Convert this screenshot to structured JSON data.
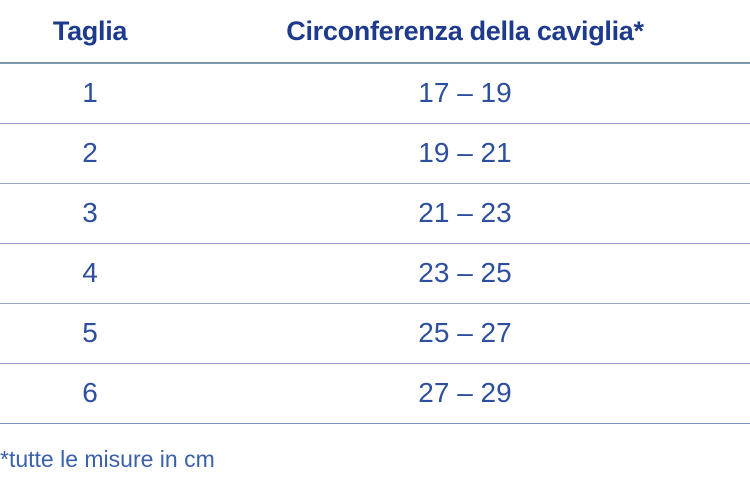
{
  "chart_data": {
    "type": "table",
    "columns": [
      "Taglia",
      "Circonferenza della caviglia*"
    ],
    "rows": [
      [
        "1",
        "17 – 19"
      ],
      [
        "2",
        "19 – 21"
      ],
      [
        "3",
        "21 – 23"
      ],
      [
        "4",
        "23 – 25"
      ],
      [
        "5",
        "25 – 27"
      ],
      [
        "6",
        "27 – 29"
      ]
    ],
    "footnote": "*tutte le misure in cm",
    "layout": {
      "grid": "horizontal-rules-only",
      "full_width_rules": true
    }
  },
  "colors": {
    "header_text": "#1e3a8c",
    "value_text": "#2e4f9e",
    "footnote_text": "#3a62ab",
    "header_rule": "#7e96a9",
    "row_rule": "#98a2c8",
    "last_rule": "#7f8ec0",
    "background": "#ffffff"
  }
}
